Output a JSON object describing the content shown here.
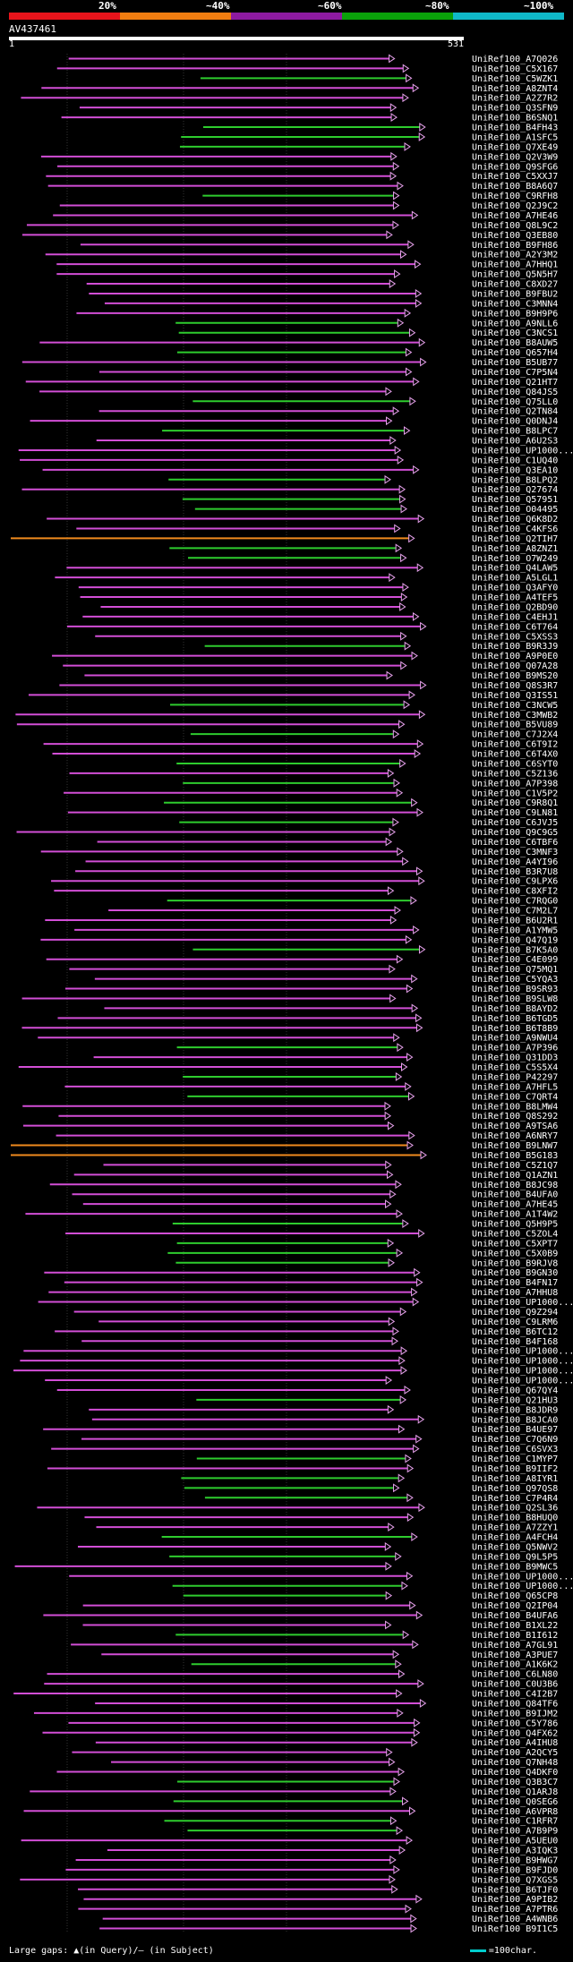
{
  "legend": {
    "ticks": [
      "20%",
      "~40%",
      "~60%",
      "~80%",
      "~100%"
    ],
    "colors": [
      "#e8141b",
      "#f07d10",
      "#8d1aa0",
      "#0aa10a",
      "#0fb8c8"
    ]
  },
  "query": {
    "title": "AV437461",
    "start": "1",
    "end": "531"
  },
  "footer": {
    "gaps_text": "Large gaps: ▲(in Query)/— (in Subject)",
    "scale_text": "=100char."
  },
  "hits": [
    "UniRef100_A7Q026",
    "UniRef100_C5X167",
    "UniRef100_C5WZK1",
    "UniRef100_A8ZNT4",
    "UniRef100_A2Z7R2",
    "UniRef100_Q3SFN9",
    "UniRef100_B6SNQ1",
    "UniRef100_B4FH43",
    "UniRef100_A1SFC5",
    "UniRef100_Q7XE49",
    "UniRef100_Q2V3W9",
    "UniRef100_Q9SFG6",
    "UniRef100_C5XXJ7",
    "UniRef100_B8A6Q7",
    "UniRef100_C9RFH8",
    "UniRef100_Q2J9C2",
    "UniRef100_A7HE46",
    "UniRef100_Q8L9C2",
    "UniRef100_Q3EB80",
    "UniRef100_B9FH86",
    "UniRef100_A2Y3M2",
    "UniRef100_A7HHQ1",
    "UniRef100_Q5N5H7",
    "UniRef100_C8XD27",
    "UniRef100_B9FBU2",
    "UniRef100_C3MNN4",
    "UniRef100_B9H9P6",
    "UniRef100_A9NLL6",
    "UniRef100_C3NCS1",
    "UniRef100_B8AUW5",
    "UniRef100_Q657H4",
    "UniRef100_B5UB77",
    "UniRef100_C7P5N4",
    "UniRef100_Q21HT7",
    "UniRef100_Q84JS5",
    "UniRef100_Q75LL0",
    "UniRef100_Q2TN84",
    "UniRef100_Q0DNJ4",
    "UniRef100_B8LPC7",
    "UniRef100_A6U2S3",
    "UniRef100_UP1000...",
    "UniRef100_C1UQ40",
    "UniRef100_Q3EA10",
    "UniRef100_B8LPQ2",
    "UniRef100_Q27674",
    "UniRef100_Q57951",
    "UniRef100_O04495",
    "UniRef100_Q6K8D2",
    "UniRef100_C4KFS6",
    "UniRef100_Q2TIH7",
    "UniRef100_A8ZNZ1",
    "UniRef100_O7W249",
    "UniRef100_Q4LAW5",
    "UniRef100_A5LGL1",
    "UniRef100_Q3AFY0",
    "UniRef100_A4TEF5",
    "UniRef100_Q2BD90",
    "UniRef100_C4EHJ1",
    "UniRef100_C6T764",
    "UniRef100_C5XSS3",
    "UniRef100_B9R3J9",
    "UniRef100_A9P0E0",
    "UniRef100_Q07A28",
    "UniRef100_B9MS20",
    "UniRef100_Q8S3R7",
    "UniRef100_Q3IS51",
    "UniRef100_C3NCW5",
    "UniRef100_C3MWB2",
    "UniRef100_B5VU89",
    "UniRef100_C7J2X4",
    "UniRef100_C6T9I2",
    "UniRef100_C6T4X0",
    "UniRef100_C6SYT0",
    "UniRef100_C5Z136",
    "UniRef100_A7P398",
    "UniRef100_C1V5P2",
    "UniRef100_C9R8Q1",
    "UniRef100_C9LN81",
    "UniRef100_C6JVJ5",
    "UniRef100_Q9C9G5",
    "UniRef100_C6TBF6",
    "UniRef100_C3MNF3",
    "UniRef100_A4YI96",
    "UniRef100_B3R7U8",
    "UniRef100_C9LPX6",
    "UniRef100_C8XFI2",
    "UniRef100_C7RQG0",
    "UniRef100_C7M2L7",
    "UniRef100_B6U2R1",
    "UniRef100_A1YMW5",
    "UniRef100_Q47Q19",
    "UniRef100_B7K5A0",
    "UniRef100_C4E099",
    "UniRef100_Q75MQ1",
    "UniRef100_C5YQA3",
    "UniRef100_B9SR93",
    "UniRef100_B9SLW8",
    "UniRef100_B8AYD2",
    "UniRef100_B6TGD5",
    "UniRef100_B6T8B9",
    "UniRef100_A9NWU4",
    "UniRef100_A7P396",
    "UniRef100_Q31DD3",
    "UniRef100_C5S5X4",
    "UniRef100_P42297",
    "UniRef100_A7HFL5",
    "UniRef100_C7QRT4",
    "UniRef100_B8LMW4",
    "UniRef100_Q8S292",
    "UniRef100_A9TSA6",
    "UniRef100_A6NRY7",
    "UniRef100_B9LNW7",
    "UniRef100_B5G183",
    "UniRef100_C5Z1Q7",
    "UniRef100_Q1AZN1",
    "UniRef100_B8JC98",
    "UniRef100_B4UFA0",
    "UniRef100_A7HE45",
    "UniRef100_A1T4W2",
    "UniRef100_Q5H9P5",
    "UniRef100_C5ZOL4",
    "UniRef100_C5XPT7",
    "UniRef100_C5X0B9",
    "UniRef100_B9RJV8",
    "UniRef100_B9GN30",
    "UniRef100_B4FN17",
    "UniRef100_A7HHU8",
    "UniRef100_UP1000...",
    "UniRef100_Q9Z294",
    "UniRef100_C9LRM6",
    "UniRef100_B6TC12",
    "UniRef100_B4F168",
    "UniRef100_UP1000...",
    "UniRef100_UP1000...",
    "UniRef100_UP1000...",
    "UniRef100_UP1000...",
    "UniRef100_Q67QY4",
    "UniRef100_Q21HU3",
    "UniRef100_B8JDR9",
    "UniRef100_B8JCA0",
    "UniRef100_B4UE97",
    "UniRef100_C7Q6N9",
    "UniRef100_C6SVX3",
    "UniRef100_C1MYP7",
    "UniRef100_B9IIF2",
    "UniRef100_A8IYR1",
    "UniRef100_Q97QS8",
    "UniRef100_C7P4R4",
    "UniRef100_Q2SL36",
    "UniRef100_B8HUQ0",
    "UniRef100_A7ZZY1",
    "UniRef100_A4FCH4",
    "UniRef100_Q5NWV2",
    "UniRef100_Q9L5P5",
    "UniRef100_B9MWC5",
    "UniRef100_UP1000...",
    "UniRef100_UP1000...",
    "UniRef100_Q65CP8",
    "UniRef100_Q2IP04",
    "UniRef100_B4UFA6",
    "UniRef100_B1XL22",
    "UniRef100_B1I612",
    "UniRef100_A7GL91",
    "UniRef100_A3PUE7",
    "UniRef100_A1K6K2",
    "UniRef100_C6LN80",
    "UniRef100_C0U3B6",
    "UniRef100_C4I2B7",
    "UniRef100_Q84TF6",
    "UniRef100_B9IJM2",
    "UniRef100_C5Y786",
    "UniRef100_Q4FX62",
    "UniRef100_A4IHU8",
    "UniRef100_A2QCY5",
    "UniRef100_Q7NH48",
    "UniRef100_Q4DKF0",
    "UniRef100_Q3B3C7",
    "UniRef100_Q1ARJ8",
    "UniRef100_Q0SEG6",
    "UniRef100_A6VPR8",
    "UniRef100_C1RFR7",
    "UniRef100_A7B9P9",
    "UniRef100_A5UEU0",
    "UniRef100_A3IQK3",
    "UniRef100_B9HWG7",
    "UniRef100_B9FJD0",
    "UniRef100_Q7XGS5",
    "UniRef100_B6TJF0",
    "UniRef100_A9PIB2",
    "UniRef100_A7PTR6",
    "UniRef100_A4WNB6",
    "UniRef100_B9I1C5"
  ]
}
